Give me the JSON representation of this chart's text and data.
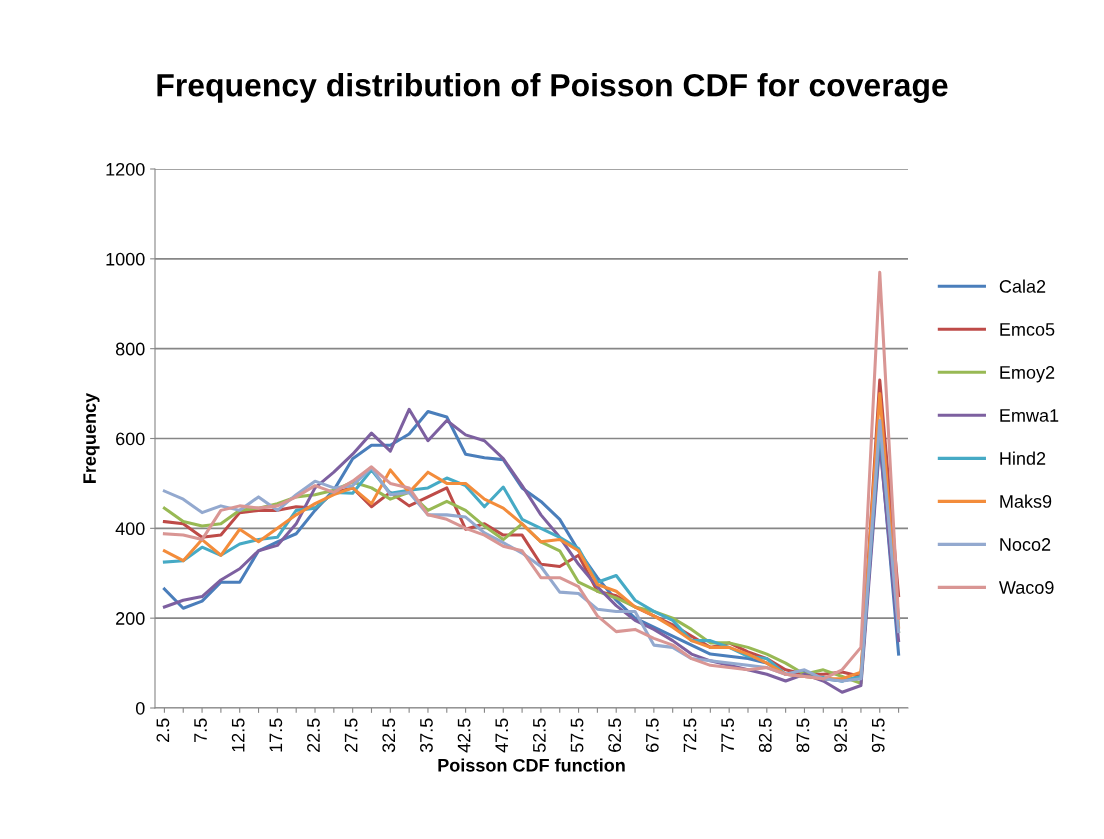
{
  "chart_data": {
    "type": "line",
    "title": "Frequency distribution of Poisson CDF for coverage",
    "xlabel": "Poisson CDF function",
    "ylabel": "Frequency",
    "categories": [
      "2.5",
      null,
      "7.5",
      null,
      "12.5",
      null,
      "17.5",
      null,
      "22.5",
      null,
      "27.5",
      null,
      "32.5",
      null,
      "37.5",
      null,
      "42.5",
      null,
      "47.5",
      null,
      "52.5",
      null,
      "57.5",
      null,
      "62.5",
      null,
      "67.5",
      null,
      "72.5",
      null,
      "77.5",
      null,
      "82.5",
      null,
      "87.5",
      null,
      "92.5",
      null,
      "97.5",
      null
    ],
    "ylim": [
      0,
      1200
    ],
    "yticks": [
      0,
      200,
      400,
      600,
      800,
      1000,
      1200
    ],
    "grid": "y",
    "legend": "right",
    "marker": "none",
    "line_style": "solid",
    "series": [
      {
        "name": "Cala2",
        "color": "#4a7ebb",
        "values": [
          265,
          222,
          238,
          280,
          280,
          350,
          370,
          388,
          440,
          485,
          555,
          585,
          585,
          610,
          660,
          648,
          565,
          557,
          553,
          490,
          460,
          420,
          350,
          290,
          240,
          200,
          180,
          160,
          140,
          120,
          115,
          110,
          100,
          75,
          80,
          65,
          60,
          70,
          600,
          120
        ]
      },
      {
        "name": "Emco5",
        "color": "#be4b48",
        "values": [
          415,
          410,
          380,
          385,
          435,
          440,
          440,
          448,
          445,
          480,
          490,
          448,
          480,
          450,
          470,
          490,
          398,
          410,
          385,
          385,
          320,
          315,
          340,
          260,
          250,
          225,
          205,
          185,
          160,
          135,
          145,
          125,
          110,
          85,
          75,
          75,
          80,
          70,
          730,
          250
        ]
      },
      {
        "name": "Emoy2",
        "color": "#98b954",
        "values": [
          445,
          415,
          405,
          410,
          440,
          445,
          455,
          470,
          475,
          485,
          503,
          490,
          465,
          480,
          440,
          460,
          440,
          405,
          375,
          410,
          370,
          350,
          280,
          260,
          245,
          225,
          215,
          200,
          175,
          145,
          145,
          135,
          120,
          100,
          75,
          85,
          70,
          55,
          640,
          170
        ]
      },
      {
        "name": "Emwa1",
        "color": "#7d60a0",
        "values": [
          225,
          240,
          248,
          285,
          310,
          350,
          362,
          410,
          490,
          525,
          565,
          612,
          572,
          665,
          595,
          640,
          608,
          595,
          555,
          495,
          430,
          380,
          320,
          270,
          228,
          195,
          175,
          150,
          120,
          105,
          95,
          85,
          75,
          60,
          75,
          60,
          35,
          50,
          590,
          150
        ]
      },
      {
        "name": "Hind2",
        "color": "#46aac5",
        "values": [
          325,
          328,
          358,
          340,
          365,
          375,
          380,
          440,
          445,
          480,
          478,
          530,
          478,
          485,
          490,
          512,
          495,
          448,
          492,
          420,
          400,
          380,
          355,
          280,
          295,
          240,
          215,
          195,
          150,
          150,
          135,
          115,
          110,
          75,
          70,
          68,
          60,
          70,
          620,
          200
        ]
      },
      {
        "name": "Maks9",
        "color": "#f38c3b",
        "values": [
          350,
          328,
          375,
          340,
          398,
          370,
          400,
          430,
          455,
          475,
          490,
          455,
          530,
          480,
          525,
          500,
          500,
          465,
          445,
          410,
          370,
          375,
          350,
          275,
          260,
          225,
          205,
          180,
          150,
          135,
          135,
          120,
          100,
          75,
          70,
          65,
          65,
          80,
          700,
          180
        ]
      },
      {
        "name": "Noco2",
        "color": "#93a9cf",
        "values": [
          483,
          465,
          435,
          450,
          440,
          470,
          440,
          475,
          505,
          490,
          495,
          535,
          475,
          480,
          430,
          430,
          425,
          390,
          368,
          345,
          315,
          258,
          255,
          220,
          215,
          215,
          140,
          135,
          110,
          105,
          100,
          95,
          90,
          75,
          85,
          65,
          60,
          65,
          640,
          170
        ]
      },
      {
        "name": "Waco9",
        "color": "#d99694",
        "values": [
          388,
          385,
          375,
          440,
          450,
          445,
          450,
          470,
          495,
          480,
          505,
          537,
          500,
          490,
          430,
          420,
          400,
          385,
          360,
          350,
          290,
          290,
          270,
          205,
          170,
          175,
          155,
          140,
          110,
          95,
          90,
          85,
          90,
          75,
          70,
          65,
          85,
          135,
          970,
          200
        ]
      }
    ]
  }
}
